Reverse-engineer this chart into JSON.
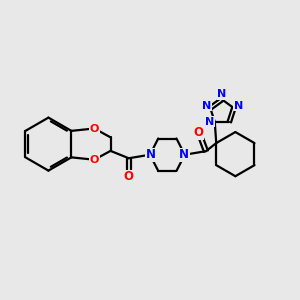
{
  "bg_color": "#e8e8e8",
  "bond_color": "#000000",
  "N_color": "#0000ff",
  "O_color": "#ff0000",
  "bond_width": 1.6,
  "figsize": [
    3.0,
    3.0
  ],
  "dpi": 100,
  "xlim": [
    0,
    10
  ],
  "ylim": [
    0,
    10
  ]
}
